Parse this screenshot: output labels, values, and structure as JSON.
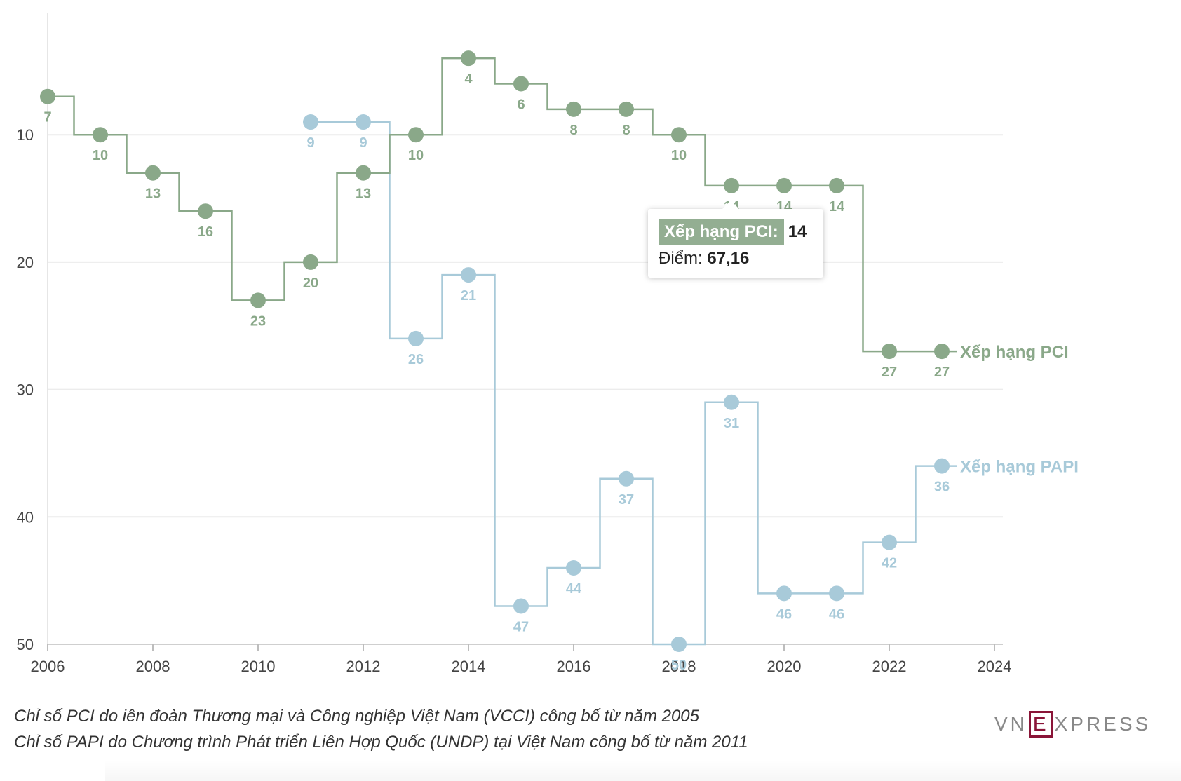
{
  "chart_data": {
    "type": "line",
    "step": true,
    "x_range": [
      2006,
      2024
    ],
    "y_range": [
      1,
      50
    ],
    "y_inverted": true,
    "grid": true,
    "x_ticks": [
      "2006",
      "2008",
      "2010",
      "2012",
      "2014",
      "2016",
      "2018",
      "2020",
      "2022",
      "2024"
    ],
    "y_ticks": [
      "10",
      "20",
      "30",
      "40",
      "50"
    ],
    "series": [
      {
        "name": "Xếp hạng PCI",
        "color": "#8aa889",
        "points": [
          {
            "x": 2006,
            "y": 7
          },
          {
            "x": 2007,
            "y": 10
          },
          {
            "x": 2008,
            "y": 13
          },
          {
            "x": 2009,
            "y": 16
          },
          {
            "x": 2010,
            "y": 23
          },
          {
            "x": 2011,
            "y": 20
          },
          {
            "x": 2012,
            "y": 13
          },
          {
            "x": 2013,
            "y": 10
          },
          {
            "x": 2014,
            "y": 4
          },
          {
            "x": 2015,
            "y": 6
          },
          {
            "x": 2016,
            "y": 8
          },
          {
            "x": 2017,
            "y": 8
          },
          {
            "x": 2018,
            "y": 10
          },
          {
            "x": 2019,
            "y": 14
          },
          {
            "x": 2020,
            "y": 14
          },
          {
            "x": 2021,
            "y": 14
          },
          {
            "x": 2022,
            "y": 27
          },
          {
            "x": 2023,
            "y": 27
          }
        ]
      },
      {
        "name": "Xếp hạng PAPI",
        "color": "#a8cad9",
        "points": [
          {
            "x": 2011,
            "y": 9
          },
          {
            "x": 2012,
            "y": 9
          },
          {
            "x": 2013,
            "y": 26
          },
          {
            "x": 2014,
            "y": 21
          },
          {
            "x": 2015,
            "y": 47
          },
          {
            "x": 2016,
            "y": 44
          },
          {
            "x": 2017,
            "y": 37
          },
          {
            "x": 2018,
            "y": 50
          },
          {
            "x": 2019,
            "y": 31
          },
          {
            "x": 2020,
            "y": 46
          },
          {
            "x": 2021,
            "y": 46
          },
          {
            "x": 2022,
            "y": 42
          },
          {
            "x": 2023,
            "y": 36
          }
        ]
      }
    ],
    "tooltip": {
      "point": {
        "x": 2019,
        "y": 14
      },
      "label": "Xếp hạng PCI:",
      "value": "14",
      "score_label": "Điểm:",
      "score_value": "67,16"
    }
  },
  "notes": [
    "Chỉ số PCI do iên đoàn Thương mại và Công nghiệp Việt Nam (VCCI) công bố từ năm 2005",
    "Chỉ số PAPI do Chương trình Phát triển Liên Hợp Quốc (UNDP) tại Việt Nam công bố từ năm 2011"
  ],
  "logo": {
    "left": "VN",
    "box": "E",
    "right": "XPRESS"
  }
}
